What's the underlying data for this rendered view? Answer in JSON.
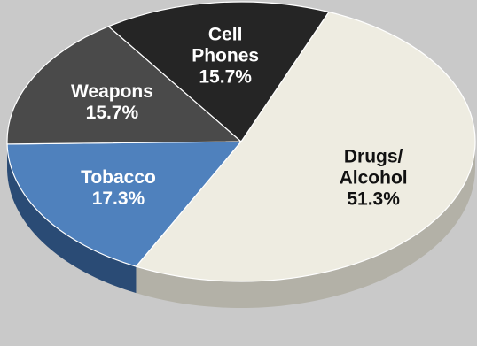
{
  "chart_data": {
    "type": "pie",
    "title": "",
    "slices": [
      {
        "label_lines": [
          "Drugs/",
          "Alcohol"
        ],
        "value": 51.3,
        "value_label": "51.3%",
        "color": "#eeece1",
        "side_color": "#b3b1a7",
        "text_color": "#111111"
      },
      {
        "label_lines": [
          "Tobacco"
        ],
        "value": 17.3,
        "value_label": "17.3%",
        "color": "#4f81bd",
        "side_color": "#2a4b75",
        "text_color": "#ffffff"
      },
      {
        "label_lines": [
          "Weapons"
        ],
        "value": 15.7,
        "value_label": "15.7%",
        "color": "#4a4a4a",
        "side_color": "#2c2c2c",
        "text_color": "#ffffff"
      },
      {
        "label_lines": [
          "Cell",
          "Phones"
        ],
        "value": 15.7,
        "value_label": "15.7%",
        "color": "#252525",
        "side_color": "#141414",
        "text_color": "#ffffff"
      }
    ],
    "background": "#c9c9c9",
    "legend": "none"
  }
}
